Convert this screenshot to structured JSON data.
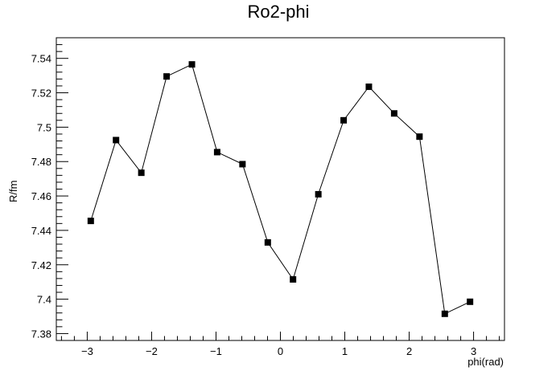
{
  "chart_data": {
    "type": "line",
    "title": "Ro2-phi",
    "xlabel": "phi(rad)",
    "ylabel": "R/fm",
    "xlim": [
      -3.48,
      3.48
    ],
    "ylim": [
      7.376,
      7.552
    ],
    "x_ticks": [
      -3,
      -2,
      -1,
      0,
      1,
      2,
      3
    ],
    "x_tick_labels": [
      "−3",
      "−2",
      "−1",
      "0",
      "1",
      "2",
      "3"
    ],
    "y_ticks": [
      7.38,
      7.4,
      7.42,
      7.44,
      7.46,
      7.48,
      7.5,
      7.52,
      7.54
    ],
    "y_tick_labels": [
      "7.38",
      "7.4",
      "7.42",
      "7.44",
      "7.46",
      "7.48",
      "7.5",
      "7.52",
      "7.54"
    ],
    "grid": false,
    "series": [
      {
        "marker": "square",
        "color": "#000000",
        "x": [
          -2.945,
          -2.553,
          -2.16,
          -1.767,
          -1.374,
          -0.982,
          -0.589,
          -0.196,
          0.196,
          0.589,
          0.982,
          1.374,
          1.767,
          2.16,
          2.553,
          2.945
        ],
        "y": [
          7.4455,
          7.4925,
          7.4735,
          7.5295,
          7.5365,
          7.4855,
          7.4785,
          7.433,
          7.4115,
          7.461,
          7.504,
          7.5235,
          7.508,
          7.4945,
          7.3915,
          7.3985
        ]
      }
    ]
  }
}
